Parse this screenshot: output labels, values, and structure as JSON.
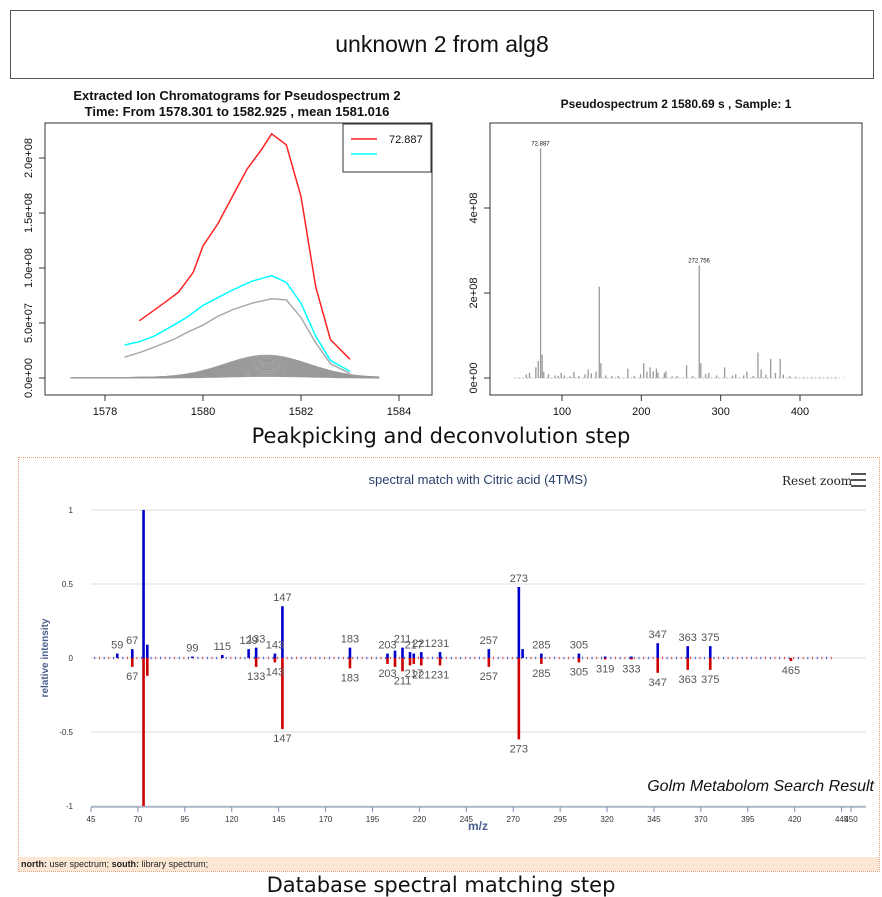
{
  "header": {
    "title": "unknown 2 from alg8"
  },
  "captions": {
    "step1": "Peakpicking and deconvolution step",
    "step2": "Database spectral matching step"
  },
  "golm": {
    "reset_zoom": "Reset zoom",
    "watermark": "Golm Metabolom Search Result",
    "legend_north_label": "north:",
    "legend_north_text": "user spectrum;",
    "legend_south_label": "south:",
    "legend_south_text": "library spectrum;"
  },
  "chart_data": [
    {
      "type": "line",
      "title": "Extracted Ion Chromatograms for  Pseudospectrum 2",
      "subtitle": "Time: From 1578.301 to 1582.925 , mean 1581.016",
      "xlabel": "",
      "ylabel": "",
      "xlim": [
        1577,
        1584
      ],
      "ylim": [
        0,
        220000000
      ],
      "xticks": [
        1578,
        1580,
        1582,
        1584
      ],
      "yticks": [
        0,
        50000000,
        100000000,
        150000000,
        200000000
      ],
      "ytick_labels": [
        "0.0e+00",
        "5.0e+07",
        "1.0e+08",
        "1.5e+08",
        "2.0e+08"
      ],
      "legend": {
        "placement": "top-right",
        "entries": [
          "72.887",
          ""
        ]
      },
      "series": [
        {
          "name": "72.887",
          "color": "#ff2222",
          "x": [
            1578.7,
            1579.2,
            1579.5,
            1579.8,
            1580.0,
            1580.3,
            1580.6,
            1580.9,
            1581.2,
            1581.4,
            1581.7,
            1582.0,
            1582.3,
            1582.6,
            1583.0
          ],
          "y": [
            52000000,
            68000000,
            78000000,
            96000000,
            120000000,
            140000000,
            165000000,
            190000000,
            208000000,
            222000000,
            212000000,
            165000000,
            83000000,
            35000000,
            17000000
          ]
        },
        {
          "color": "#00ffff",
          "x": [
            1578.4,
            1578.7,
            1579.0,
            1579.4,
            1579.7,
            1580.0,
            1580.3,
            1580.6,
            1581.0,
            1581.4,
            1581.7,
            1582.0,
            1582.3,
            1582.6,
            1583.0
          ],
          "y": [
            30000000,
            33000000,
            38000000,
            48000000,
            56000000,
            66000000,
            73000000,
            80000000,
            88000000,
            93000000,
            87000000,
            68000000,
            38000000,
            16000000,
            6000000
          ]
        },
        {
          "color": "#aaaaaa",
          "x": [
            1578.4,
            1578.7,
            1579.0,
            1579.4,
            1579.7,
            1580.0,
            1580.3,
            1580.6,
            1581.0,
            1581.4,
            1581.7,
            1582.0,
            1582.3,
            1582.6,
            1583.0
          ],
          "y": [
            19000000,
            23000000,
            28000000,
            35000000,
            42000000,
            48000000,
            56000000,
            62000000,
            68000000,
            72000000,
            71000000,
            55000000,
            32000000,
            13000000,
            4000000
          ]
        }
      ]
    },
    {
      "type": "bar",
      "title": "Pseudospectrum 2 1580.69 s , Sample: 1",
      "xlabel": "",
      "ylabel": "",
      "xlim": [
        30,
        470
      ],
      "ylim": [
        0,
        580000000
      ],
      "xticks": [
        100,
        200,
        300,
        400
      ],
      "yticks": [
        0,
        200000000,
        400000000
      ],
      "ytick_labels": [
        "0e+00",
        "2e+08",
        "4e+08"
      ],
      "peak_labels": [
        {
          "x": 72.887,
          "label": "72.887"
        },
        {
          "x": 272.756,
          "label": "272.756"
        }
      ],
      "x": [
        55,
        59,
        67,
        70,
        73,
        75,
        77,
        83,
        91,
        95,
        99,
        103,
        110,
        115,
        121,
        129,
        133,
        137,
        143,
        147,
        149,
        155,
        163,
        171,
        183,
        191,
        199,
        203,
        207,
        211,
        215,
        219,
        221,
        229,
        231,
        239,
        245,
        257,
        265,
        273,
        275,
        281,
        285,
        295,
        305,
        315,
        319,
        329,
        333,
        341,
        347,
        351,
        357,
        363,
        369,
        375,
        379,
        387,
        395,
        405,
        415,
        425,
        435,
        445,
        455
      ],
      "y": [
        8000000,
        12000000,
        25000000,
        40000000,
        540000000,
        55000000,
        15000000,
        9000000,
        6000000,
        5000000,
        12000000,
        6000000,
        4000000,
        14000000,
        5000000,
        9000000,
        20000000,
        11000000,
        15000000,
        215000000,
        35000000,
        6000000,
        5000000,
        5000000,
        22000000,
        5000000,
        9000000,
        35000000,
        15000000,
        25000000,
        16000000,
        22000000,
        13000000,
        12000000,
        16000000,
        4000000,
        5000000,
        30000000,
        5000000,
        265000000,
        35000000,
        9000000,
        12000000,
        6000000,
        25000000,
        6000000,
        9000000,
        6000000,
        15000000,
        5000000,
        60000000,
        20000000,
        8000000,
        45000000,
        12000000,
        45000000,
        8000000,
        4000000,
        3000000,
        2000000,
        2000000,
        2000000,
        2000000,
        2000000,
        1000000
      ]
    },
    {
      "type": "bar",
      "title": "spectral match with Citric acid (4TMS)",
      "xlabel": "m/z",
      "ylabel": "relative intensity",
      "xlim": [
        45,
        455
      ],
      "ylim": [
        -1,
        1
      ],
      "xticks": [
        45,
        70,
        95,
        120,
        145,
        170,
        195,
        220,
        245,
        270,
        295,
        320,
        345,
        370,
        395,
        420,
        445,
        450
      ],
      "yticks": [
        -1,
        -0.5,
        0,
        0.5,
        1
      ],
      "ytick_labels": [
        "-1",
        "-0.5",
        "0",
        "0.5",
        "1"
      ],
      "series": [
        {
          "name": "north: user spectrum",
          "color": "#0000cc",
          "x": [
            59,
            67,
            73,
            75,
            99,
            115,
            129,
            133,
            143,
            147,
            183,
            203,
            207,
            211,
            215,
            217,
            221,
            231,
            257,
            273,
            275,
            285,
            305,
            319,
            333,
            347,
            363,
            375
          ],
          "y": [
            0.03,
            0.06,
            1.0,
            0.09,
            0.01,
            0.02,
            0.06,
            0.07,
            0.03,
            0.35,
            0.07,
            0.03,
            0.05,
            0.07,
            0.04,
            0.03,
            0.04,
            0.04,
            0.06,
            0.48,
            0.06,
            0.03,
            0.03,
            0.01,
            0.01,
            0.1,
            0.08,
            0.08
          ],
          "labels": [
            {
              "x": 59,
              "label": "59"
            },
            {
              "x": 67,
              "label": "67"
            },
            {
              "x": 99,
              "label": "99"
            },
            {
              "x": 115,
              "label": "115"
            },
            {
              "x": 129,
              "label": "129"
            },
            {
              "x": 133,
              "label": "133"
            },
            {
              "x": 143,
              "label": "143"
            },
            {
              "x": 147,
              "label": "147"
            },
            {
              "x": 183,
              "label": "183"
            },
            {
              "x": 203,
              "label": "203"
            },
            {
              "x": 211,
              "label": "211"
            },
            {
              "x": 217,
              "label": "217"
            },
            {
              "x": 221,
              "label": "221"
            },
            {
              "x": 231,
              "label": "231"
            },
            {
              "x": 257,
              "label": "257"
            },
            {
              "x": 273,
              "label": "273"
            },
            {
              "x": 285,
              "label": "285"
            },
            {
              "x": 305,
              "label": "305"
            },
            {
              "x": 347,
              "label": "347"
            },
            {
              "x": 363,
              "label": "363"
            },
            {
              "x": 375,
              "label": "375"
            }
          ]
        },
        {
          "name": "south: library spectrum",
          "color": "#cc0000",
          "x": [
            67,
            73,
            75,
            133,
            143,
            147,
            183,
            203,
            207,
            211,
            215,
            217,
            221,
            231,
            257,
            273,
            285,
            305,
            319,
            333,
            347,
            363,
            375,
            465
          ],
          "y": [
            -0.06,
            -1.0,
            -0.12,
            -0.06,
            -0.03,
            -0.48,
            -0.07,
            -0.04,
            -0.06,
            -0.09,
            -0.05,
            -0.04,
            -0.05,
            -0.05,
            -0.06,
            -0.55,
            -0.04,
            -0.03,
            -0.01,
            -0.01,
            -0.1,
            -0.08,
            -0.08,
            -0.02
          ],
          "labels": [
            {
              "x": 67,
              "label": "67"
            },
            {
              "x": 133,
              "label": "133"
            },
            {
              "x": 143,
              "label": "143"
            },
            {
              "x": 147,
              "label": "147"
            },
            {
              "x": 183,
              "label": "183"
            },
            {
              "x": 203,
              "label": "203"
            },
            {
              "x": 211,
              "label": "211"
            },
            {
              "x": 217,
              "label": "217"
            },
            {
              "x": 221,
              "label": "221"
            },
            {
              "x": 231,
              "label": "231"
            },
            {
              "x": 257,
              "label": "257"
            },
            {
              "x": 273,
              "label": "273"
            },
            {
              "x": 285,
              "label": "285"
            },
            {
              "x": 305,
              "label": "305"
            },
            {
              "x": 319,
              "label": "319"
            },
            {
              "x": 333,
              "label": "333"
            },
            {
              "x": 347,
              "label": "347"
            },
            {
              "x": 363,
              "label": "363"
            },
            {
              "x": 375,
              "label": "375"
            },
            {
              "x": 465,
              "label": "465"
            }
          ]
        }
      ]
    }
  ]
}
